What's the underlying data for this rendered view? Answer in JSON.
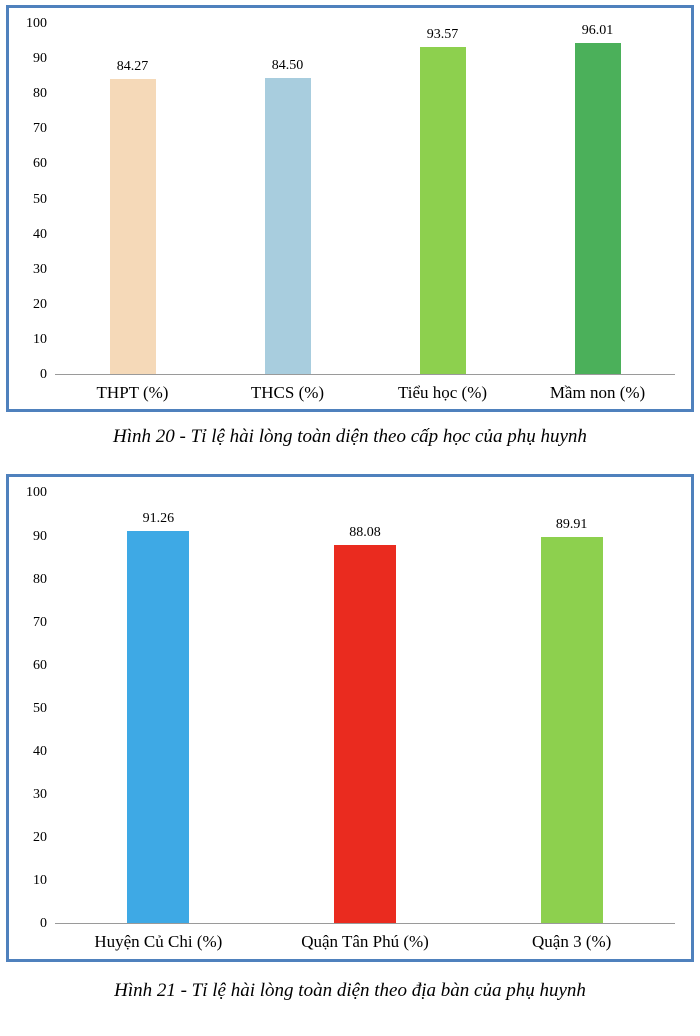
{
  "chart_data": [
    {
      "type": "bar",
      "caption": "Hình 20 - Tỉ lệ hài lòng toàn diện theo cấp học của phụ huynh",
      "categories": [
        "THPT (%)",
        "THCS (%)",
        "Tiểu học (%)",
        "Mầm non (%)"
      ],
      "values": [
        84.27,
        84.5,
        93.57,
        96.01
      ],
      "labels": [
        "84.27",
        "84.50",
        "93.57",
        "96.01"
      ],
      "colors": [
        "#f5d9b8",
        "#a8cdde",
        "#8dd04e",
        "#4bb05a"
      ],
      "ylim": [
        0,
        100
      ],
      "yticks": [
        0,
        10,
        20,
        30,
        40,
        50,
        60,
        70,
        80,
        90,
        100
      ],
      "grid": false,
      "legend": "none",
      "border_color": "#4f81bd"
    },
    {
      "type": "bar",
      "caption": "Hình 21 - Tỉ lệ hài lòng toàn diện theo địa bàn của phụ huynh",
      "categories": [
        "Huyện Củ Chi (%)",
        "Quận Tân Phú (%)",
        "Quận 3 (%)"
      ],
      "values": [
        91.26,
        88.08,
        89.91
      ],
      "labels": [
        "91.26",
        "88.08",
        "89.91"
      ],
      "colors": [
        "#3ea9e5",
        "#ea2b1f",
        "#8dd04e"
      ],
      "ylim": [
        0,
        100
      ],
      "yticks": [
        0,
        10,
        20,
        30,
        40,
        50,
        60,
        70,
        80,
        90,
        100
      ],
      "grid": false,
      "legend": "none",
      "border_color": "#4f81bd"
    }
  ]
}
